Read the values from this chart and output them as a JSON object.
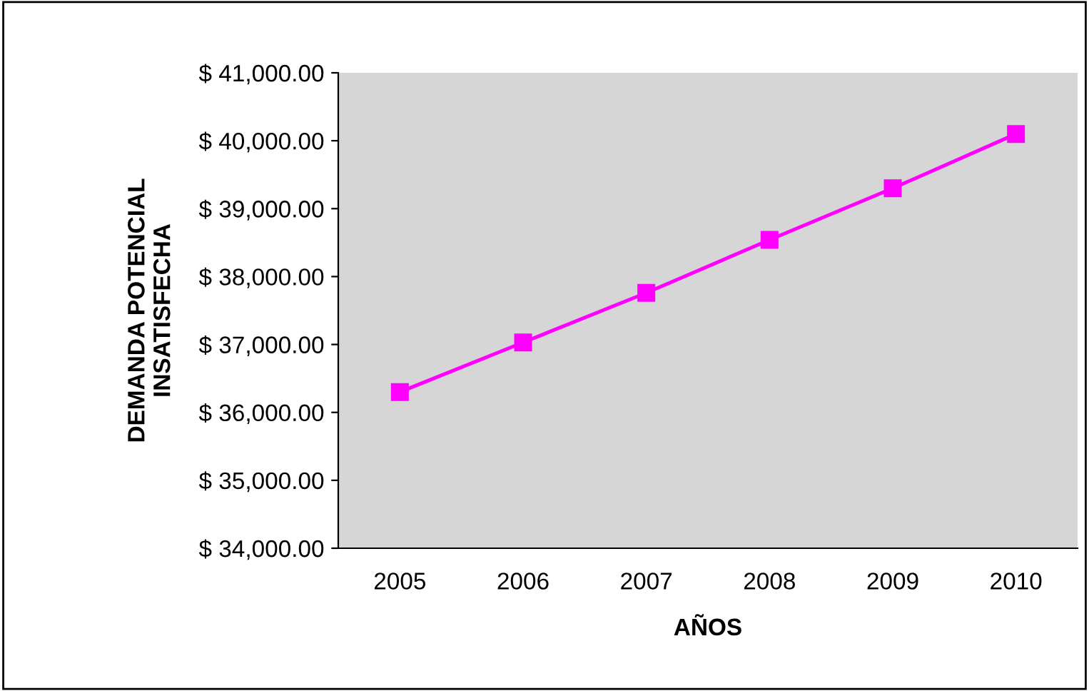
{
  "chart_data": {
    "type": "line",
    "xlabel": "AÑOS",
    "ylabel": "DEMANDA POTENCIAL\nINSATISFECHA",
    "categories": [
      "2005",
      "2006",
      "2007",
      "2008",
      "2009",
      "2010"
    ],
    "series": [
      {
        "color": "#ff00ff",
        "values": [
          36300,
          37030,
          37760,
          38540,
          39300,
          40100
        ]
      }
    ],
    "ylim": [
      34000,
      41000
    ],
    "yticks": [
      {
        "value": 34000,
        "label": "$ 34,000.00"
      },
      {
        "value": 35000,
        "label": "$ 35,000.00"
      },
      {
        "value": 36000,
        "label": "$ 36,000.00"
      },
      {
        "value": 37000,
        "label": "$ 37,000.00"
      },
      {
        "value": 38000,
        "label": "$ 38,000.00"
      },
      {
        "value": 39000,
        "label": "$ 39,000.00"
      },
      {
        "value": 40000,
        "label": "$ 40,000.00"
      },
      {
        "value": 41000,
        "label": "$ 41,000.00"
      }
    ],
    "grid": false,
    "legend": false,
    "marker": "square",
    "line_style": "solid"
  }
}
